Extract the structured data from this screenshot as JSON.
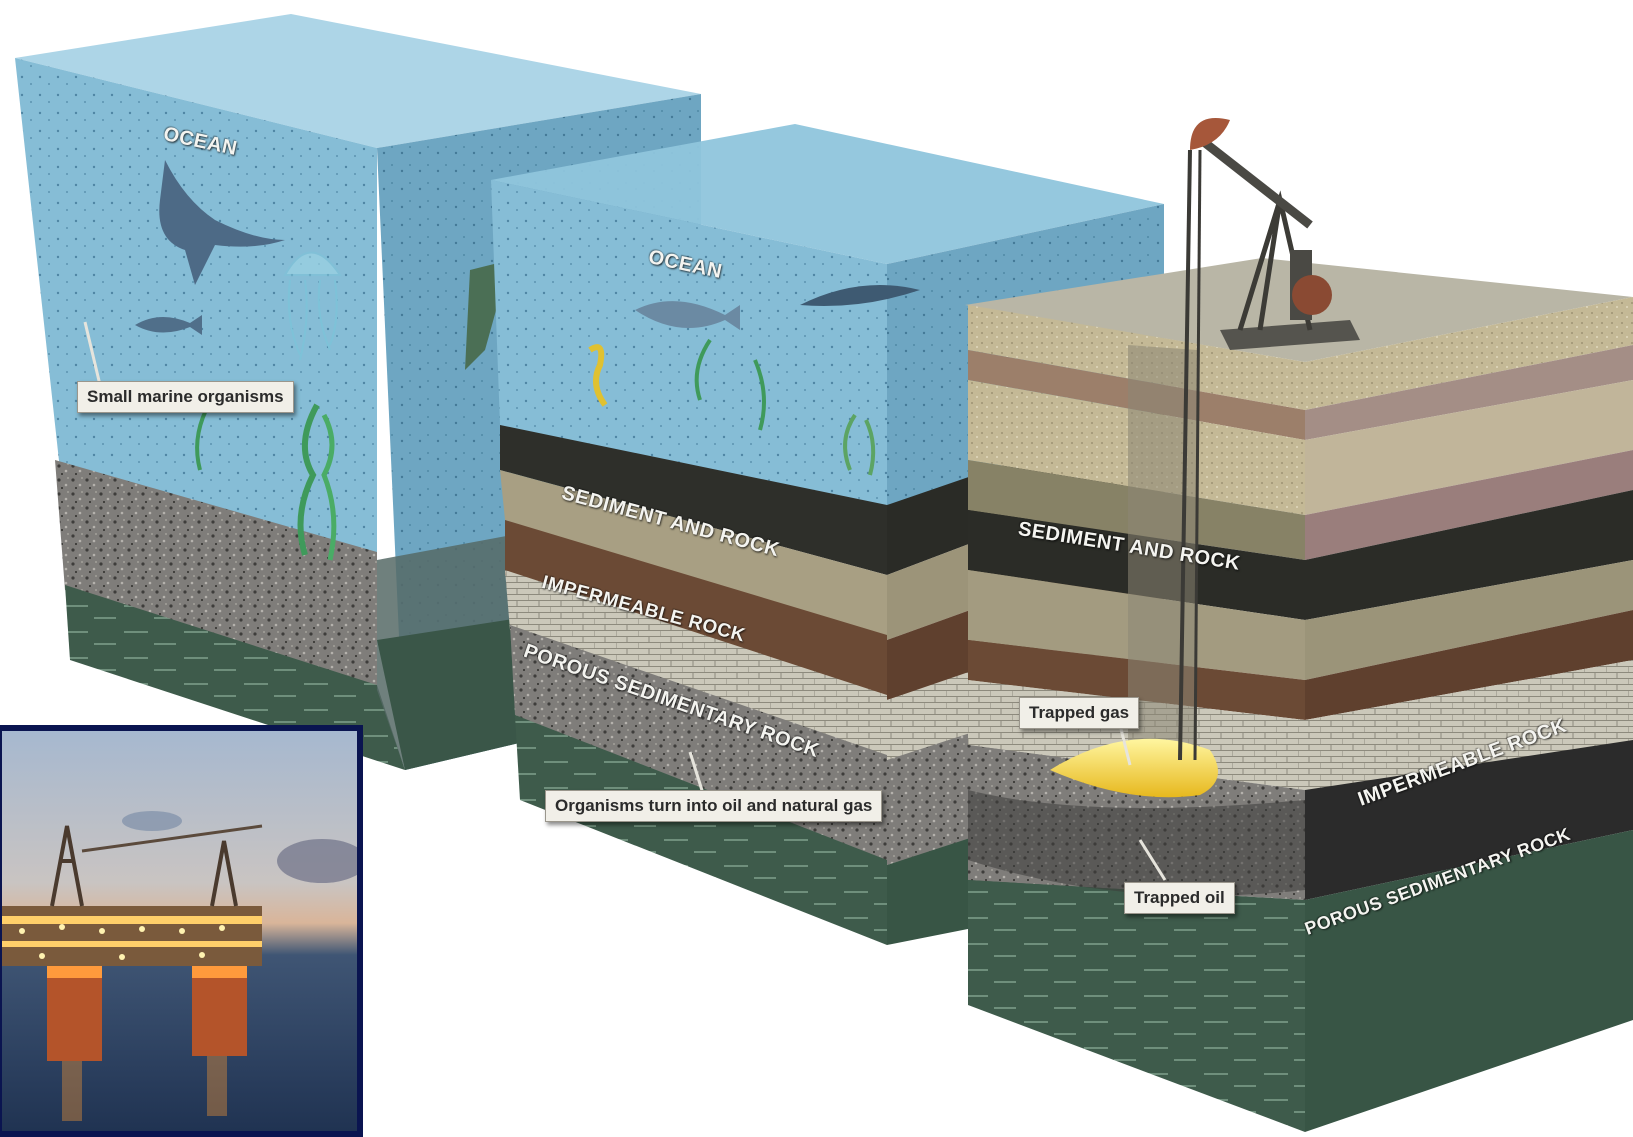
{
  "labels": {
    "ocean_1": "OCEAN",
    "ocean_2": "OCEAN",
    "small_marine": "Small marine organisms",
    "sediment_rock_1": "SEDIMENT AND ROCK",
    "impermeable_1": "IMPERMEABLE ROCK",
    "porous_1": "POROUS SEDIMENTARY ROCK",
    "organisms_turn": "Organisms turn into oil and natural gas",
    "sediment_rock_2": "SEDIMENT AND ROCK",
    "trapped_gas": "Trapped gas",
    "impermeable_2": "IMPERMEABLE ROCK",
    "porous_2": "POROUS SEDIMENTARY ROCK",
    "trapped_oil": "Trapped oil"
  },
  "colors": {
    "ocean": "#7fb7d2",
    "ocean_dark": "#5f96b4",
    "sediment_dark": "#3a3a32",
    "sediment_tan": "#b8ad8c",
    "sediment_brown": "#6e4c36",
    "impermeable": "#c9c6b8",
    "porous": "#7d7b78",
    "bedrock": "#3f5c4c",
    "gas": "#f4d030",
    "inset_border": "#0a1450"
  }
}
